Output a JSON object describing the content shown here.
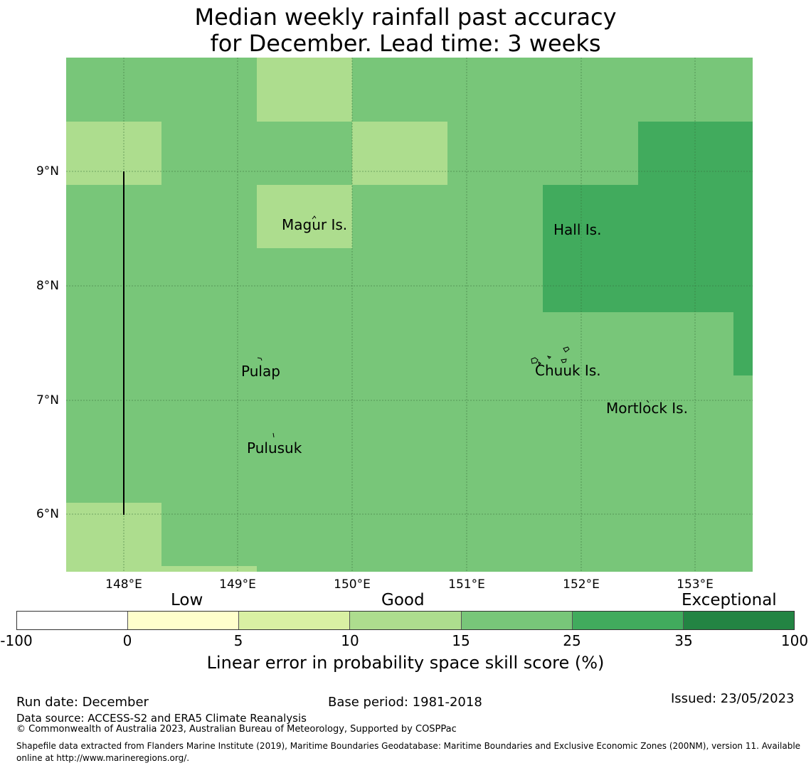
{
  "title": {
    "line1": "Median weekly rainfall past accuracy",
    "line2": "for December. Lead time: 3 weeks"
  },
  "map": {
    "lat_labels": [
      "9°N",
      "8°N",
      "7°N",
      "6°N"
    ],
    "lon_labels": [
      "148°E",
      "149°E",
      "150°E",
      "151°E",
      "152°E",
      "153°E"
    ],
    "places": [
      "Magur Is.",
      "Hall Is.",
      "Pulap",
      "Chuuk Is.",
      "Mortlock Is.",
      "Pulusuk"
    ],
    "colors": {
      "good_15_25": "#78c679",
      "good_10_15": "#addd8e",
      "good_25_35": "#41ab5d"
    }
  },
  "colorbar": {
    "class_labels": [
      "Low",
      "Good",
      "Exceptional"
    ],
    "ticks": [
      "-100",
      "0",
      "5",
      "10",
      "15",
      "25",
      "35",
      "100"
    ],
    "colors": [
      "#ffffff",
      "#ffffcc",
      "#d9f0a3",
      "#addd8e",
      "#78c679",
      "#41ab5d",
      "#238443"
    ],
    "label": "Linear error in probability space skill score (%)"
  },
  "footer": {
    "run_date": "Run date: December",
    "base_period": "Base period: 1981-2018",
    "issued": "Issued: 23/05/2023",
    "data_source": "Data source: ACCESS-S2 and ERA5 Climate Reanalysis",
    "copyright": "© Commonwealth of Australia 2023, Australian Bureau of Meteorology, Supported by COSPPac",
    "shapefile": "Shapefile data extracted from Flanders Marine Institute (2019), Maritime Boundaries Geodatabase: Maritime Boundaries and Exclusive Economic Zones (200NM), version 11. Available online at http://www.marineregions.org/."
  }
}
